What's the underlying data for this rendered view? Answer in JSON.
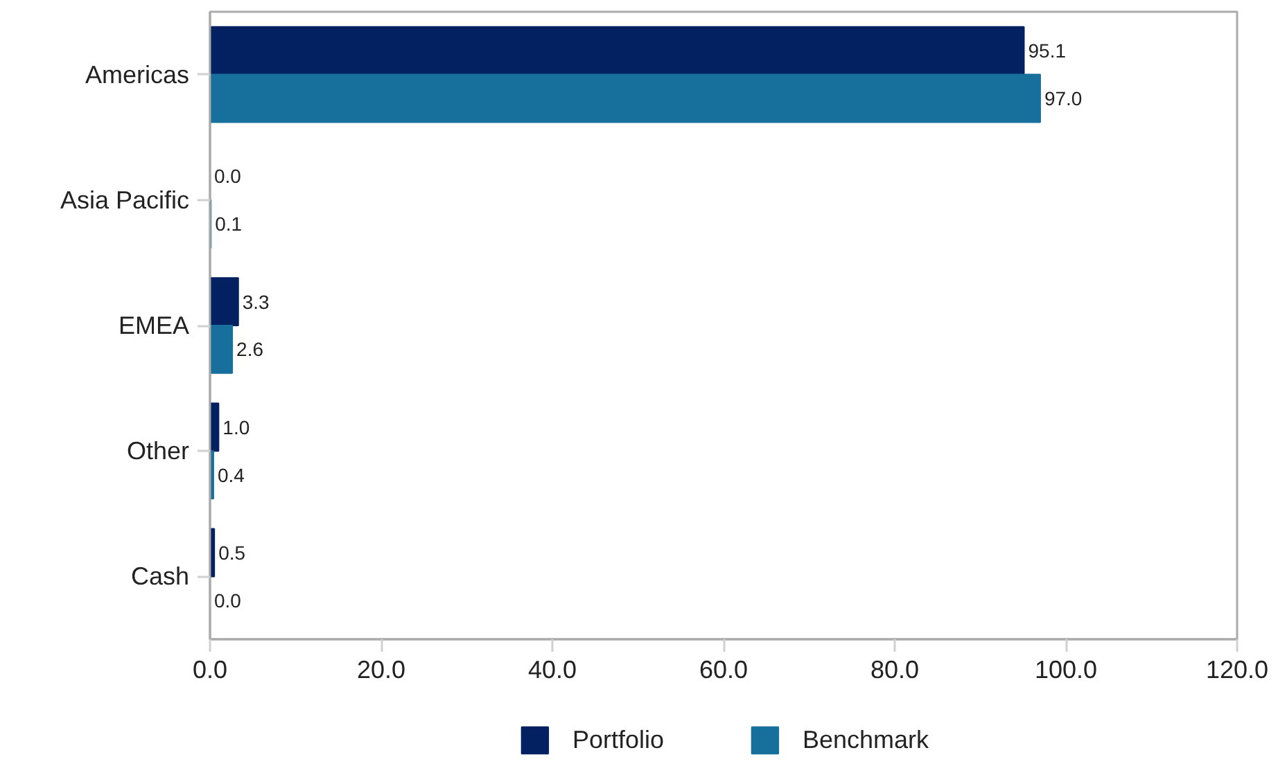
{
  "chart_data": {
    "type": "bar",
    "orientation": "horizontal",
    "categories": [
      "Americas",
      "Asia Pacific",
      "EMEA",
      "Other",
      "Cash"
    ],
    "series": [
      {
        "name": "Portfolio",
        "color": "#032160",
        "values": [
          95.1,
          0.0,
          3.3,
          1.0,
          0.5
        ],
        "value_labels": [
          "95.1",
          "0.0",
          "3.3",
          "1.0",
          "0.5"
        ]
      },
      {
        "name": "Benchmark",
        "color": "#17709c",
        "values": [
          97.0,
          0.1,
          2.6,
          0.4,
          0.0
        ],
        "value_labels": [
          "97.0",
          "0.1",
          "2.6",
          "0.4",
          "0.0"
        ]
      }
    ],
    "xlim": [
      0,
      120
    ],
    "xticks": [
      {
        "value": 0,
        "label": "0.0"
      },
      {
        "value": 20,
        "label": "20.0"
      },
      {
        "value": 40,
        "label": "40.0"
      },
      {
        "value": 60,
        "label": "60.0"
      },
      {
        "value": 80,
        "label": "80.0"
      },
      {
        "value": 100,
        "label": "100.0"
      },
      {
        "value": 120,
        "label": "120.0"
      }
    ],
    "grid": false,
    "legend": "bottom"
  }
}
